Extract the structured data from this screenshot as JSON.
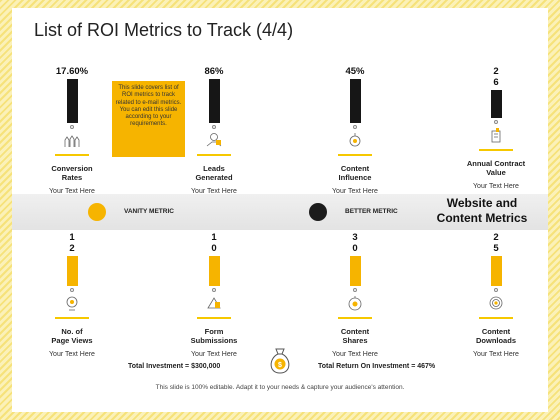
{
  "title": "List of ROI Metrics to Track (4/4)",
  "note": "This slide covers list of ROI metrics to track related to e-mail metrics. You can edit this slide according to your requirements.",
  "top_metrics": [
    {
      "value": "17.60%",
      "name": "Conversion\nRates",
      "sub": "Your Text Here",
      "icon": "hands-icon"
    },
    {
      "value": "86%",
      "name": "Leads\nGenerated",
      "sub": "Your Text Here",
      "icon": "handshake-icon"
    },
    {
      "value": "45%",
      "name": "Content\nInfluence",
      "sub": "Your Text Here",
      "icon": "influence-icon"
    },
    {
      "value": "2\n6",
      "name": "Annual Contract\nValue",
      "sub": "Your Text Here",
      "icon": "contract-icon"
    }
  ],
  "bottom_metrics": [
    {
      "value": "1\n2",
      "name": "No. of\nPage Views",
      "sub": "Your Text Here",
      "icon": "page-views-icon"
    },
    {
      "value": "1\n0",
      "name": "Form\nSubmissions",
      "sub": "Your Text Here",
      "icon": "form-icon"
    },
    {
      "value": "3\n0",
      "name": "Content\nShares",
      "sub": "Your Text Here",
      "icon": "share-icon"
    },
    {
      "value": "2\n5",
      "name": "Content\nDownloads",
      "sub": "Your Text Here",
      "icon": "download-icon"
    }
  ],
  "legend": {
    "vanity": "VANITY METRIC",
    "better": "BETTER METRIC"
  },
  "band_title": "Website and\nContent Metrics",
  "investment": {
    "total_investment": "Total Investment = $300,000",
    "total_return": "Total Return On Investment = 467%"
  },
  "footer": "This slide is 100% editable. Adapt it to your needs & capture your audience's attention.",
  "colors": {
    "accent": "#f6b400",
    "dark": "#161616"
  }
}
